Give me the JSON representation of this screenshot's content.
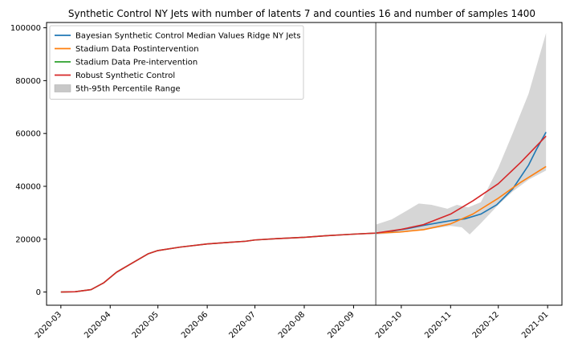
{
  "chart_data": {
    "type": "line",
    "title": "Synthetic Control NY Jets with number of latents 7 and counties 16 and number of samples 1400",
    "xlabel": "",
    "ylabel": "",
    "x_ticks": [
      "2020-03",
      "2020-04",
      "2020-05",
      "2020-06",
      "2020-07",
      "2020-08",
      "2020-09",
      "2020-10",
      "2020-11",
      "2020-12",
      "2021-01"
    ],
    "y_ticks": [
      "0",
      "20000",
      "40000",
      "60000",
      "80000",
      "100000"
    ],
    "xlim": [
      "2020-02-21",
      "2021-01-10"
    ],
    "ylim": [
      -5000,
      102000
    ],
    "intervention_date": "2020-09-15",
    "legend_position": "top-left",
    "grid": false,
    "series": [
      {
        "name": "Bayesian Synthetic Control Median Values Ridge NY Jets",
        "color": "#1f77b4",
        "points": [
          [
            "2020-09-15",
            22300
          ],
          [
            "2020-09-25",
            23000
          ],
          [
            "2020-10-05",
            24000
          ],
          [
            "2020-10-15",
            25200
          ],
          [
            "2020-10-25",
            26300
          ],
          [
            "2020-11-01",
            27000
          ],
          [
            "2020-11-10",
            27700
          ],
          [
            "2020-11-20",
            29500
          ],
          [
            "2020-11-30",
            33000
          ],
          [
            "2020-12-10",
            39000
          ],
          [
            "2020-12-20",
            48000
          ],
          [
            "2020-12-25",
            54000
          ],
          [
            "2020-12-31",
            60500
          ]
        ]
      },
      {
        "name": "Stadium Data Postintervention",
        "color": "#ff7f0e",
        "points": [
          [
            "2020-09-15",
            22300
          ],
          [
            "2020-09-30",
            22700
          ],
          [
            "2020-10-15",
            23600
          ],
          [
            "2020-11-01",
            25800
          ],
          [
            "2020-11-15",
            29500
          ],
          [
            "2020-12-01",
            35500
          ],
          [
            "2020-12-15",
            41500
          ],
          [
            "2020-12-31",
            47500
          ]
        ]
      },
      {
        "name": "Stadium Data Pre-intervention",
        "color": "#2ca02c",
        "points": [
          [
            "2020-03-01",
            0
          ],
          [
            "2020-03-10",
            100
          ],
          [
            "2020-03-20",
            900
          ],
          [
            "2020-03-28",
            3500
          ],
          [
            "2020-04-05",
            7500
          ],
          [
            "2020-04-15",
            11000
          ],
          [
            "2020-04-25",
            14500
          ],
          [
            "2020-05-01",
            15700
          ],
          [
            "2020-05-15",
            17000
          ],
          [
            "2020-06-01",
            18200
          ],
          [
            "2020-06-15",
            18800
          ],
          [
            "2020-06-25",
            19200
          ],
          [
            "2020-07-01",
            19700
          ],
          [
            "2020-07-15",
            20200
          ],
          [
            "2020-08-01",
            20700
          ],
          [
            "2020-08-15",
            21300
          ],
          [
            "2020-09-01",
            21900
          ],
          [
            "2020-09-15",
            22300
          ]
        ]
      },
      {
        "name": "Robust Synthetic Control",
        "color": "#d62728",
        "points": [
          [
            "2020-03-01",
            0
          ],
          [
            "2020-03-10",
            100
          ],
          [
            "2020-03-20",
            900
          ],
          [
            "2020-03-28",
            3500
          ],
          [
            "2020-04-05",
            7500
          ],
          [
            "2020-04-15",
            11000
          ],
          [
            "2020-04-25",
            14500
          ],
          [
            "2020-05-01",
            15700
          ],
          [
            "2020-05-15",
            17000
          ],
          [
            "2020-06-01",
            18200
          ],
          [
            "2020-06-15",
            18800
          ],
          [
            "2020-06-25",
            19200
          ],
          [
            "2020-07-01",
            19700
          ],
          [
            "2020-07-15",
            20200
          ],
          [
            "2020-08-01",
            20700
          ],
          [
            "2020-08-15",
            21300
          ],
          [
            "2020-09-01",
            21900
          ],
          [
            "2020-09-15",
            22300
          ],
          [
            "2020-10-01",
            23700
          ],
          [
            "2020-10-15",
            25500
          ],
          [
            "2020-11-01",
            29500
          ],
          [
            "2020-11-15",
            34500
          ],
          [
            "2020-12-01",
            41000
          ],
          [
            "2020-12-15",
            49000
          ],
          [
            "2020-12-31",
            59000
          ]
        ]
      }
    ],
    "band": {
      "name": "5th-95th Percentile Range",
      "color": "#c8c8c8",
      "upper": [
        [
          "2020-09-15",
          25500
        ],
        [
          "2020-09-25",
          27500
        ],
        [
          "2020-10-05",
          31000
        ],
        [
          "2020-10-12",
          33500
        ],
        [
          "2020-10-20",
          33000
        ],
        [
          "2020-10-30",
          31500
        ],
        [
          "2020-11-05",
          33000
        ],
        [
          "2020-11-12",
          32000
        ],
        [
          "2020-11-20",
          34000
        ],
        [
          "2020-12-01",
          47000
        ],
        [
          "2020-12-10",
          60000
        ],
        [
          "2020-12-20",
          75000
        ],
        [
          "2020-12-31",
          98000
        ]
      ],
      "lower": [
        [
          "2020-09-15",
          21700
        ],
        [
          "2020-10-01",
          22500
        ],
        [
          "2020-10-15",
          23500
        ],
        [
          "2020-11-01",
          25000
        ],
        [
          "2020-11-08",
          24500
        ],
        [
          "2020-11-13",
          21800
        ],
        [
          "2020-11-20",
          26000
        ],
        [
          "2020-12-01",
          33000
        ],
        [
          "2020-12-10",
          38000
        ],
        [
          "2020-12-20",
          42500
        ],
        [
          "2020-12-31",
          46000
        ]
      ]
    }
  }
}
